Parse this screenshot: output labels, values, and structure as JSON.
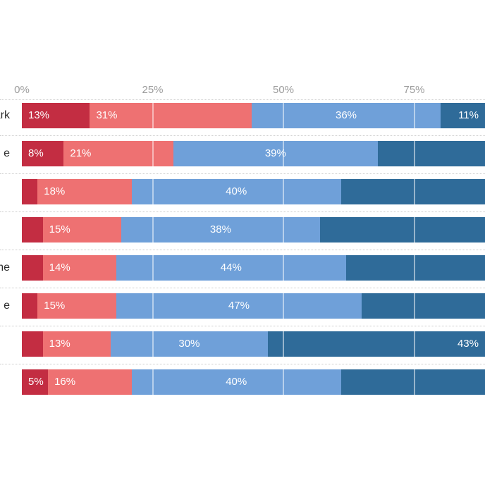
{
  "chart_data": {
    "type": "bar",
    "orientation": "horizontal",
    "stacked": true,
    "title": "",
    "categories": [
      "ark",
      "e",
      "",
      "",
      "ne",
      "e",
      "",
      ""
    ],
    "series": [
      {
        "name": "dark_red",
        "values": [
          13,
          8,
          3,
          4,
          4,
          3,
          4,
          5
        ],
        "labels": [
          "13%",
          "8%",
          null,
          null,
          null,
          null,
          null,
          "5%"
        ]
      },
      {
        "name": "light_red",
        "values": [
          31,
          21,
          18,
          15,
          14,
          15,
          13,
          16
        ],
        "labels": [
          "31%",
          "21%",
          "18%",
          "15%",
          "14%",
          "15%",
          "13%",
          "16%"
        ]
      },
      {
        "name": "light_blue",
        "values": [
          36,
          39,
          40,
          38,
          44,
          47,
          30,
          40
        ],
        "labels": [
          "36%",
          "39%",
          "40%",
          "38%",
          "44%",
          "47%",
          "30%",
          "40%"
        ]
      },
      {
        "name": "dark_blue",
        "values": [
          11,
          32,
          39,
          43,
          38,
          35,
          43,
          39
        ],
        "labels": [
          "11%",
          null,
          null,
          null,
          null,
          null,
          "43%",
          null
        ]
      }
    ],
    "x_axis": {
      "ticks": [
        "0%",
        "25%",
        "50%",
        "75%"
      ],
      "values": [
        0,
        25,
        50,
        75
      ],
      "range": [
        0,
        100
      ]
    },
    "grid": "vertical white lines over bars at 25/50/75, dotted gray horizontal separators between rows",
    "legend": "none visible",
    "notes": "screenshot is cropped: row labels cut at left edge (visible fragments only), bars cut at right edge (~88%); unlabeled segment values estimated from pixel widths"
  },
  "display": {
    "colors": {
      "dark_red": "#c32d42",
      "light_red": "#ee7172",
      "light_blue": "#6fa0d9",
      "dark_blue": "#2f6b99",
      "axis_text": "#9c9c9c",
      "row_label_text": "#2d2d2d",
      "separator": "#cccccc",
      "background": "#ffffff"
    },
    "label_align": {
      "dark_red": "left",
      "light_red": "left",
      "light_blue": "center",
      "dark_blue": "right"
    }
  }
}
